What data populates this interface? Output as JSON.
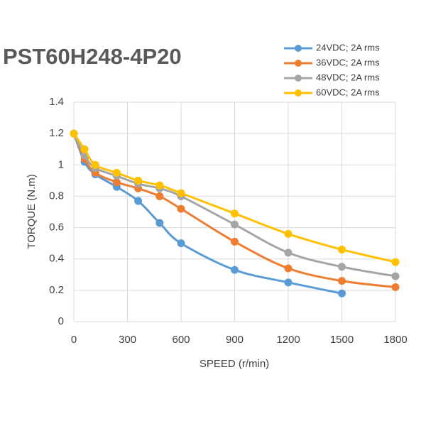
{
  "chart_data": {
    "type": "line",
    "title": "PST60H248-4P20",
    "x_label": "SPEED (r/min)",
    "y_label": "TORQUE (N.m)",
    "x": [
      0,
      60,
      120,
      240,
      360,
      480,
      600,
      900,
      1200,
      1500,
      1800
    ],
    "series": [
      {
        "name": "24VDC; 2A rms",
        "color": "#5b9bd5",
        "values": [
          1.2,
          1.02,
          0.94,
          0.86,
          0.77,
          0.63,
          0.5,
          0.33,
          0.25,
          0.18,
          null
        ]
      },
      {
        "name": "36VDC; 2A rms",
        "color": "#ed7d31",
        "values": [
          1.2,
          1.04,
          0.95,
          0.89,
          0.85,
          0.8,
          0.72,
          0.51,
          0.34,
          0.26,
          0.22
        ]
      },
      {
        "name": "48VDC; 2A rms",
        "color": "#a5a5a5",
        "values": [
          1.2,
          1.06,
          0.98,
          0.93,
          0.88,
          0.85,
          0.8,
          0.62,
          0.44,
          0.35,
          0.29
        ]
      },
      {
        "name": "60VDC; 2A rms",
        "color": "#ffc000",
        "values": [
          1.2,
          1.1,
          1.0,
          0.95,
          0.9,
          0.87,
          0.82,
          0.69,
          0.56,
          0.46,
          0.38
        ]
      }
    ],
    "xlim": [
      0,
      1800
    ],
    "xticks": [
      0,
      300,
      600,
      900,
      1200,
      1500,
      1800
    ],
    "ylim": [
      0,
      1.4
    ],
    "yticks": [
      0,
      0.2,
      0.4,
      0.6,
      0.8,
      1,
      1.2,
      1.4
    ],
    "grid": true
  }
}
